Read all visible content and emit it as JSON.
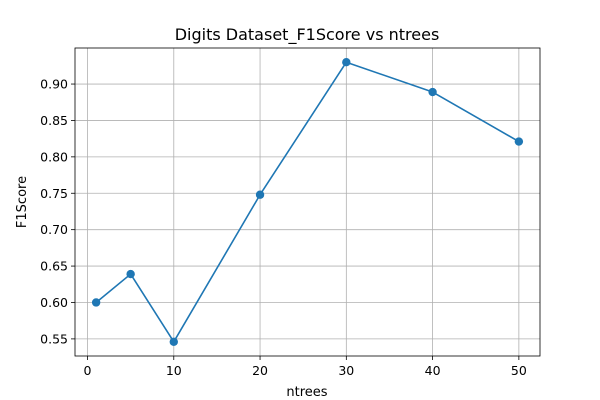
{
  "chart_data": {
    "type": "line",
    "title": "Digits Dataset_F1Score vs ntrees",
    "xlabel": "ntrees",
    "ylabel": "F1Score",
    "xlim": [
      -1.45,
      52.45
    ],
    "ylim": [
      0.5265,
      0.9495
    ],
    "xticks": [
      0,
      10,
      20,
      30,
      40,
      50
    ],
    "yticks": [
      0.55,
      0.6,
      0.65,
      0.7,
      0.75,
      0.8,
      0.85,
      0.9
    ],
    "ytick_labels": [
      "0.55",
      "0.60",
      "0.65",
      "0.70",
      "0.75",
      "0.80",
      "0.85",
      "0.90"
    ],
    "grid": true,
    "series": [
      {
        "color": "#1f77b4",
        "marker": "circle",
        "x": [
          1,
          5,
          10,
          20,
          30,
          40,
          50
        ],
        "y": [
          0.6,
          0.639,
          0.546,
          0.748,
          0.93,
          0.889,
          0.821
        ]
      }
    ]
  }
}
